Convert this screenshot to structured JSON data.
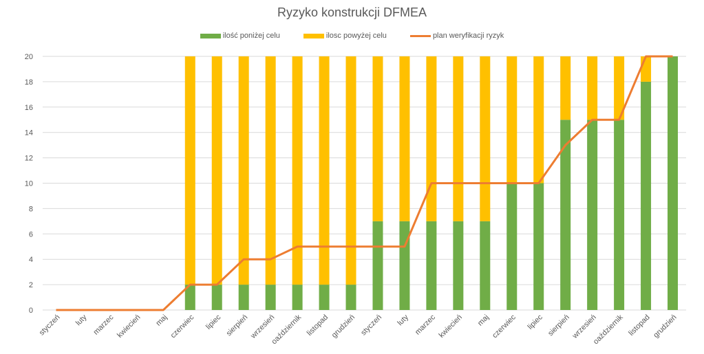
{
  "chart_data": {
    "type": "bar",
    "stacked": true,
    "title": "Ryzyko konstrukcji DFMEA",
    "xlabel": "",
    "ylabel": "",
    "ylim": [
      0,
      20
    ],
    "yticks": [
      "0",
      "2",
      "4",
      "6",
      "8",
      "10",
      "12",
      "14",
      "16",
      "18",
      "20"
    ],
    "grid": true,
    "legend_position": "top",
    "categories": [
      "styczeń",
      "luty",
      "marzec",
      "kwiecień",
      "maj",
      "czerwiec",
      "lipiec",
      "sierpień",
      "wrzesień",
      "oaździernik",
      "listopad",
      "grudzień",
      "styczeń",
      "luty",
      "marzec",
      "kwiecień",
      "maj",
      "czerwiec",
      "lipiec",
      "sierpień",
      "wrzesień",
      "oaździernik",
      "listopad",
      "grudzień"
    ],
    "series": [
      {
        "name": "ilość poniżej celu",
        "type": "bar",
        "color": "#70AD47",
        "values": [
          0,
          0,
          0,
          0,
          0,
          2,
          2,
          2,
          2,
          2,
          2,
          2,
          7,
          7,
          7,
          7,
          7,
          10,
          10,
          15,
          15,
          15,
          18,
          20
        ]
      },
      {
        "name": "ilosc powyżej celu",
        "type": "bar",
        "color": "#FFC000",
        "values": [
          0,
          0,
          0,
          0,
          0,
          18,
          18,
          18,
          18,
          18,
          18,
          18,
          13,
          13,
          13,
          13,
          13,
          10,
          10,
          5,
          5,
          5,
          2,
          0
        ]
      },
      {
        "name": "plan weryfikacji ryzyk",
        "type": "line",
        "color": "#ED7D31",
        "values": [
          0,
          0,
          0,
          0,
          0,
          2,
          2,
          4,
          4,
          5,
          5,
          5,
          5,
          5,
          10,
          10,
          10,
          10,
          10,
          13,
          15,
          15,
          20,
          20
        ]
      }
    ]
  }
}
